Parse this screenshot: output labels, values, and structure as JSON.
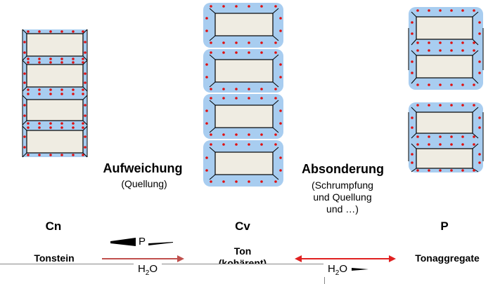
{
  "stages": [
    {
      "id": "cn",
      "label": "Cn"
    },
    {
      "id": "cv",
      "label": "Cv"
    },
    {
      "id": "p",
      "label": "P"
    }
  ],
  "processes": {
    "softening": {
      "title": "Aufweichung",
      "subtitle": "(Quellung)"
    },
    "separation": {
      "title": "Absonderung",
      "lines": [
        "(Schrumpfung",
        "und Quellung",
        "und …)"
      ]
    }
  },
  "materials": {
    "claystone": "Tonstein",
    "clay_line1": "Ton",
    "clay_line2": "(kohärent)",
    "aggregates": "Tonaggregate"
  },
  "arrows": {
    "pressure_symbol": "P",
    "water_symbol": "H",
    "water_subscript": "2",
    "water_tail": "O"
  },
  "colors": {
    "water": "#a8cdf0",
    "plate_fill": "#efece2",
    "dots": "#e01010",
    "arrow1": "#c0504d",
    "arrow2": "#e02020"
  }
}
